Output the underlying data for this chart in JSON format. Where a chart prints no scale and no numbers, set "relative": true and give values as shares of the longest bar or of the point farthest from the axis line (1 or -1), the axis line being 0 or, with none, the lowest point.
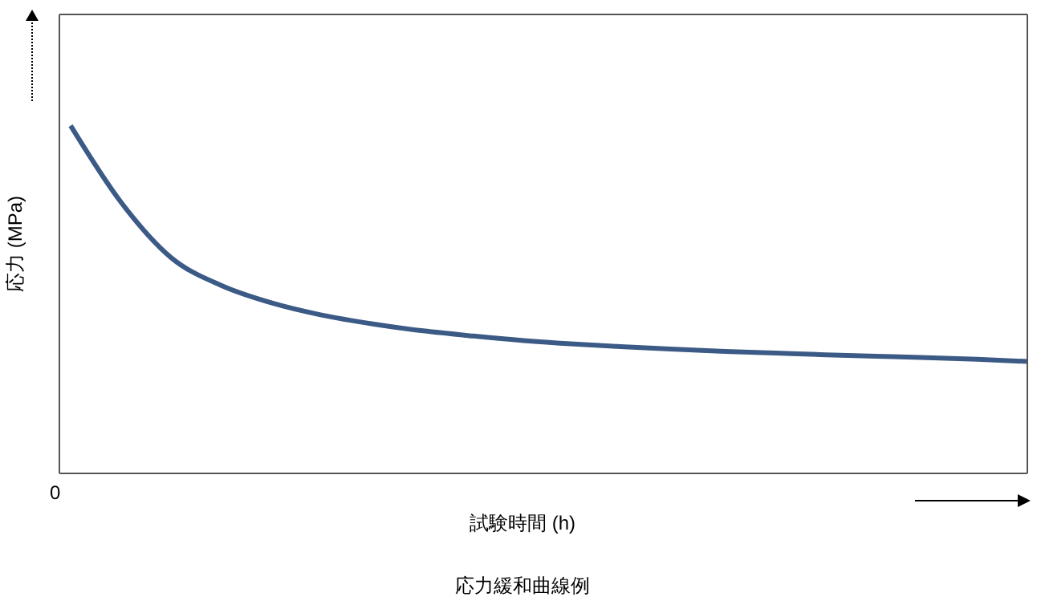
{
  "chart_data": {
    "type": "line",
    "relative": true,
    "title": "応力緩和曲線例",
    "xlabel": "試験時間 (h)",
    "ylabel": "応力 (MPa)",
    "annotations": [
      "0"
    ],
    "categories": [
      null,
      null,
      null,
      null,
      null,
      null,
      null,
      null,
      null,
      null,
      null,
      null,
      null,
      null,
      null,
      null,
      null,
      null,
      null,
      null
    ],
    "series": [
      {
        "color": "#3b5a85",
        "values": [
          1.0,
          0.78,
          0.62,
          0.54,
          0.49,
          0.455,
          0.43,
          0.41,
          0.395,
          0.382,
          0.372,
          0.364,
          0.357,
          0.351,
          0.346,
          0.341,
          0.337,
          0.333,
          0.328,
          0.322
        ]
      }
    ],
    "legend": false,
    "marker": "none",
    "line_style": "solid"
  }
}
